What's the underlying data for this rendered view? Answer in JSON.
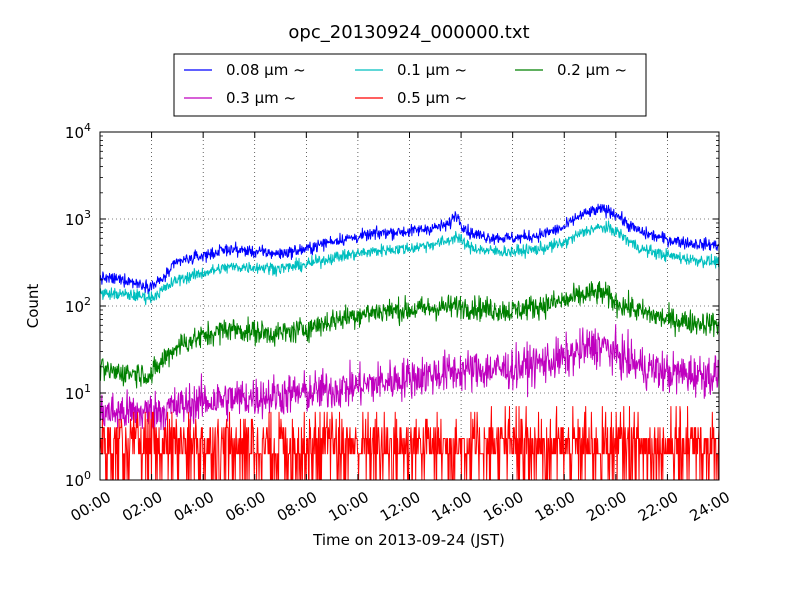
{
  "chart_data": {
    "type": "line",
    "title": "opc_20130924_000000.txt",
    "xlabel": "Time on 2013-09-24 (JST)",
    "ylabel": "Count",
    "x_unit": "hour",
    "xlim": [
      0,
      24
    ],
    "ylim": [
      1,
      10000
    ],
    "yscale": "log",
    "grid": true,
    "legend_position": "top",
    "x_ticks": [
      0,
      2,
      4,
      6,
      8,
      10,
      12,
      14,
      16,
      18,
      20,
      22,
      24
    ],
    "x_tick_labels": [
      "00:00",
      "02:00",
      "04:00",
      "06:00",
      "08:00",
      "10:00",
      "12:00",
      "14:00",
      "16:00",
      "18:00",
      "20:00",
      "22:00",
      "24:00"
    ],
    "y_ticks": [
      {
        "value": 1,
        "base": "10",
        "exp": "0"
      },
      {
        "value": 10,
        "base": "10",
        "exp": "1"
      },
      {
        "value": 100,
        "base": "10",
        "exp": "2"
      },
      {
        "value": 1000,
        "base": "10",
        "exp": "3"
      },
      {
        "value": 10000,
        "base": "10",
        "exp": "4"
      }
    ],
    "series": [
      {
        "name": "0.08 μm ~",
        "color": "#0000ff",
        "noise": 0.035,
        "x": [
          0,
          1,
          1.5,
          2,
          2.4,
          3,
          4,
          5,
          6,
          7,
          8,
          9,
          10,
          11,
          12,
          13,
          13.5,
          13.8,
          14,
          14.3,
          15,
          16,
          17,
          18,
          18.5,
          19,
          19.5,
          20,
          20.5,
          21,
          22,
          23,
          24
        ],
        "y": [
          210,
          200,
          180,
          170,
          200,
          320,
          380,
          450,
          420,
          400,
          450,
          560,
          620,
          700,
          720,
          800,
          850,
          1150,
          900,
          700,
          620,
          600,
          650,
          800,
          1050,
          1200,
          1300,
          1150,
          850,
          700,
          580,
          520,
          500
        ]
      },
      {
        "name": "0.1 μm ~",
        "color": "#00bfbf",
        "noise": 0.035,
        "x": [
          0,
          1,
          1.5,
          2,
          2.4,
          3,
          4,
          5,
          6,
          7,
          8,
          9,
          10,
          11,
          12,
          13,
          13.5,
          13.8,
          14,
          14.3,
          15,
          16,
          17,
          18,
          18.5,
          19,
          19.5,
          20,
          20.5,
          21,
          22,
          23,
          24
        ],
        "y": [
          140,
          135,
          130,
          125,
          150,
          200,
          240,
          280,
          280,
          270,
          300,
          360,
          400,
          440,
          460,
          520,
          560,
          640,
          560,
          480,
          430,
          420,
          450,
          530,
          650,
          760,
          800,
          730,
          560,
          450,
          380,
          340,
          320
        ]
      },
      {
        "name": "0.2 μm ~",
        "color": "#008000",
        "noise": 0.07,
        "x": [
          0,
          1,
          1.5,
          2,
          2.5,
          3,
          4,
          5,
          6,
          7,
          8,
          9,
          10,
          11,
          12,
          13,
          14,
          15,
          16,
          17,
          18,
          19,
          19.5,
          20,
          21,
          22,
          23,
          24
        ],
        "y": [
          18,
          17,
          17,
          16,
          25,
          35,
          45,
          55,
          50,
          48,
          55,
          68,
          80,
          88,
          90,
          95,
          100,
          92,
          88,
          100,
          115,
          140,
          140,
          110,
          85,
          70,
          65,
          62
        ]
      },
      {
        "name": "0.3 μm ~",
        "color": "#bf00bf",
        "noise": 0.12,
        "x": [
          0,
          2,
          3,
          4,
          6,
          8,
          10,
          12,
          14,
          16,
          18,
          19,
          19.5,
          20,
          21,
          22,
          24
        ],
        "y": [
          6,
          6,
          7,
          8,
          9,
          10,
          12,
          15,
          18,
          19,
          25,
          34,
          35,
          28,
          20,
          17,
          16
        ]
      },
      {
        "name": "0.5 μm ~",
        "color": "#ff0000",
        "kind": "count",
        "x": [
          0,
          6,
          12,
          18,
          20,
          24
        ],
        "y": [
          1.8,
          2.0,
          2.2,
          2.6,
          2.8,
          2.3
        ]
      }
    ]
  }
}
